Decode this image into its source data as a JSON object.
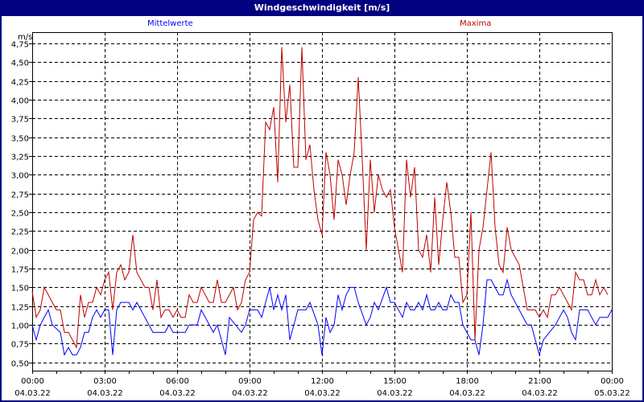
{
  "window": {
    "title": "Windgeschwindigkeit [m/s]"
  },
  "colors": {
    "titlebar": "#000080",
    "mean": "#0000ff",
    "max": "#c00000",
    "grid": "#000000"
  },
  "chart_data": {
    "type": "line",
    "title": "Windgeschwindigkeit [m/s]",
    "ylabel": "m/s",
    "xlabel": "",
    "ylim": [
      0.39,
      4.9
    ],
    "xlim": [
      "04.03.22 00:00",
      "05.03.22 00:00"
    ],
    "grid": true,
    "legend_placement": "top",
    "y_ticks": [
      "0,50",
      "0,75",
      "1,00",
      "1,25",
      "1,50",
      "1,75",
      "2,00",
      "2,25",
      "2,50",
      "2,75",
      "3,00",
      "3,25",
      "3,50",
      "3,75",
      "4,00",
      "4,25",
      "4,50",
      "4,75"
    ],
    "y_tick_values": [
      0.5,
      0.75,
      1.0,
      1.25,
      1.5,
      1.75,
      2.0,
      2.25,
      2.5,
      2.75,
      3.0,
      3.25,
      3.5,
      3.75,
      4.0,
      4.25,
      4.5,
      4.75
    ],
    "x_ticks": [
      {
        "time": "00:00",
        "date": "04.03.22"
      },
      {
        "time": "03:00",
        "date": "04.03.22"
      },
      {
        "time": "06:00",
        "date": "04.03.22"
      },
      {
        "time": "09:00",
        "date": "04.03.22"
      },
      {
        "time": "12:00",
        "date": "04.03.22"
      },
      {
        "time": "15:00",
        "date": "04.03.22"
      },
      {
        "time": "18:00",
        "date": "04.03.22"
      },
      {
        "time": "21:00",
        "date": "04.03.22"
      },
      {
        "time": "00:00",
        "date": "05.03.22"
      }
    ],
    "series": [
      {
        "name": "Mittelwerte",
        "color": "#0000ff",
        "points": [
          [
            "00:00",
            1.0
          ],
          [
            "00:10",
            0.8
          ],
          [
            "00:20",
            1.0
          ],
          [
            "00:40",
            1.2
          ],
          [
            "00:50",
            1.0
          ],
          [
            "01:10",
            0.9
          ],
          [
            "01:20",
            0.6
          ],
          [
            "01:30",
            0.7
          ],
          [
            "01:40",
            0.6
          ],
          [
            "01:50",
            0.6
          ],
          [
            "02:00",
            0.7
          ],
          [
            "02:10",
            0.9
          ],
          [
            "02:20",
            0.9
          ],
          [
            "02:30",
            1.1
          ],
          [
            "02:40",
            1.2
          ],
          [
            "02:50",
            1.1
          ],
          [
            "03:00",
            1.2
          ],
          [
            "03:10",
            1.2
          ],
          [
            "03:20",
            0.6
          ],
          [
            "03:30",
            1.2
          ],
          [
            "03:40",
            1.3
          ],
          [
            "04:00",
            1.3
          ],
          [
            "04:10",
            1.2
          ],
          [
            "04:20",
            1.3
          ],
          [
            "05:00",
            0.9
          ],
          [
            "05:30",
            0.9
          ],
          [
            "05:40",
            1.0
          ],
          [
            "05:50",
            0.9
          ],
          [
            "06:20",
            0.9
          ],
          [
            "06:30",
            1.0
          ],
          [
            "06:50",
            1.0
          ],
          [
            "07:00",
            1.2
          ],
          [
            "07:30",
            0.9
          ],
          [
            "07:40",
            1.0
          ],
          [
            "08:00",
            0.6
          ],
          [
            "08:10",
            1.1
          ],
          [
            "08:40",
            0.9
          ],
          [
            "08:50",
            1.0
          ],
          [
            "09:00",
            1.2
          ],
          [
            "09:20",
            1.2
          ],
          [
            "09:30",
            1.1
          ],
          [
            "09:40",
            1.3
          ],
          [
            "09:50",
            1.5
          ],
          [
            "10:00",
            1.2
          ],
          [
            "10:10",
            1.4
          ],
          [
            "10:20",
            1.2
          ],
          [
            "10:30",
            1.4
          ],
          [
            "10:40",
            0.8
          ],
          [
            "11:00",
            1.2
          ],
          [
            "11:20",
            1.2
          ],
          [
            "11:30",
            1.3
          ],
          [
            "11:50",
            1.0
          ],
          [
            "12:00",
            0.6
          ],
          [
            "12:10",
            1.1
          ],
          [
            "12:20",
            0.9
          ],
          [
            "12:30",
            1.0
          ],
          [
            "12:40",
            1.4
          ],
          [
            "12:50",
            1.2
          ],
          [
            "13:00",
            1.4
          ],
          [
            "13:10",
            1.5
          ],
          [
            "13:20",
            1.5
          ],
          [
            "13:30",
            1.3
          ],
          [
            "13:50",
            1.0
          ],
          [
            "14:00",
            1.1
          ],
          [
            "14:10",
            1.3
          ],
          [
            "14:20",
            1.2
          ],
          [
            "14:40",
            1.5
          ],
          [
            "14:50",
            1.3
          ],
          [
            "15:00",
            1.3
          ],
          [
            "15:20",
            1.1
          ],
          [
            "15:30",
            1.3
          ],
          [
            "15:40",
            1.2
          ],
          [
            "15:50",
            1.2
          ],
          [
            "16:00",
            1.3
          ],
          [
            "16:10",
            1.2
          ],
          [
            "16:20",
            1.4
          ],
          [
            "16:30",
            1.2
          ],
          [
            "16:40",
            1.2
          ],
          [
            "16:50",
            1.3
          ],
          [
            "17:00",
            1.2
          ],
          [
            "17:10",
            1.2
          ],
          [
            "17:20",
            1.4
          ],
          [
            "17:30",
            1.3
          ],
          [
            "17:40",
            1.3
          ],
          [
            "17:50",
            1.0
          ],
          [
            "18:10",
            0.8
          ],
          [
            "18:20",
            0.8
          ],
          [
            "18:30",
            0.6
          ],
          [
            "18:40",
            1.0
          ],
          [
            "18:50",
            1.6
          ],
          [
            "19:00",
            1.6
          ],
          [
            "19:20",
            1.4
          ],
          [
            "19:30",
            1.4
          ],
          [
            "19:40",
            1.6
          ],
          [
            "19:50",
            1.4
          ],
          [
            "20:10",
            1.2
          ],
          [
            "20:30",
            1.0
          ],
          [
            "20:40",
            1.0
          ],
          [
            "21:00",
            0.6
          ],
          [
            "21:10",
            0.8
          ],
          [
            "21:40",
            1.0
          ],
          [
            "22:00",
            1.2
          ],
          [
            "22:10",
            1.1
          ],
          [
            "22:20",
            0.9
          ],
          [
            "22:30",
            0.8
          ],
          [
            "22:40",
            1.2
          ],
          [
            "23:00",
            1.2
          ],
          [
            "23:20",
            1.0
          ],
          [
            "23:30",
            1.1
          ],
          [
            "23:50",
            1.1
          ],
          [
            "24:00",
            1.2
          ]
        ]
      },
      {
        "name": "Maxima",
        "color": "#c00000",
        "points": [
          [
            "00:00",
            1.45
          ],
          [
            "00:10",
            1.1
          ],
          [
            "00:20",
            1.2
          ],
          [
            "00:30",
            1.5
          ],
          [
            "00:50",
            1.3
          ],
          [
            "01:00",
            1.2
          ],
          [
            "01:10",
            1.2
          ],
          [
            "01:20",
            0.9
          ],
          [
            "01:30",
            0.9
          ],
          [
            "01:50",
            0.7
          ],
          [
            "02:00",
            1.4
          ],
          [
            "02:10",
            1.1
          ],
          [
            "02:20",
            1.3
          ],
          [
            "02:30",
            1.3
          ],
          [
            "02:40",
            1.5
          ],
          [
            "02:50",
            1.4
          ],
          [
            "03:00",
            1.6
          ],
          [
            "03:10",
            1.7
          ],
          [
            "03:20",
            1.2
          ],
          [
            "03:30",
            1.7
          ],
          [
            "03:40",
            1.8
          ],
          [
            "03:50",
            1.6
          ],
          [
            "04:00",
            1.7
          ],
          [
            "04:10",
            2.2
          ],
          [
            "04:20",
            1.7
          ],
          [
            "04:30",
            1.6
          ],
          [
            "04:40",
            1.5
          ],
          [
            "04:50",
            1.5
          ],
          [
            "05:00",
            1.2
          ],
          [
            "05:10",
            1.6
          ],
          [
            "05:20",
            1.1
          ],
          [
            "05:30",
            1.2
          ],
          [
            "05:40",
            1.2
          ],
          [
            "05:50",
            1.1
          ],
          [
            "06:00",
            1.2
          ],
          [
            "06:10",
            1.1
          ],
          [
            "06:20",
            1.1
          ],
          [
            "06:30",
            1.4
          ],
          [
            "06:40",
            1.3
          ],
          [
            "06:50",
            1.3
          ],
          [
            "07:00",
            1.5
          ],
          [
            "07:20",
            1.3
          ],
          [
            "07:30",
            1.3
          ],
          [
            "07:40",
            1.6
          ],
          [
            "07:50",
            1.3
          ],
          [
            "08:00",
            1.3
          ],
          [
            "08:20",
            1.5
          ],
          [
            "08:30",
            1.2
          ],
          [
            "08:40",
            1.3
          ],
          [
            "08:50",
            1.6
          ],
          [
            "09:00",
            1.7
          ],
          [
            "09:10",
            2.4
          ],
          [
            "09:20",
            2.5
          ],
          [
            "09:30",
            2.45
          ],
          [
            "09:40",
            3.7
          ],
          [
            "09:50",
            3.6
          ],
          [
            "10:00",
            3.9
          ],
          [
            "10:10",
            2.9
          ],
          [
            "10:20",
            4.7
          ],
          [
            "10:30",
            3.7
          ],
          [
            "10:40",
            4.2
          ],
          [
            "10:50",
            3.1
          ],
          [
            "11:00",
            3.1
          ],
          [
            "11:10",
            4.7
          ],
          [
            "11:20",
            3.2
          ],
          [
            "11:30",
            3.4
          ],
          [
            "11:40",
            2.8
          ],
          [
            "11:50",
            2.4
          ],
          [
            "12:00",
            2.2
          ],
          [
            "12:10",
            3.3
          ],
          [
            "12:20",
            3.0
          ],
          [
            "12:30",
            2.4
          ],
          [
            "12:40",
            3.2
          ],
          [
            "12:50",
            3.0
          ],
          [
            "13:00",
            2.6
          ],
          [
            "13:10",
            3.0
          ],
          [
            "13:20",
            3.3
          ],
          [
            "13:30",
            4.3
          ],
          [
            "13:40",
            3.2
          ],
          [
            "13:50",
            2.0
          ],
          [
            "14:00",
            3.2
          ],
          [
            "14:10",
            2.5
          ],
          [
            "14:20",
            3.0
          ],
          [
            "14:30",
            2.8
          ],
          [
            "14:40",
            2.7
          ],
          [
            "14:50",
            2.8
          ],
          [
            "15:00",
            2.3
          ],
          [
            "15:10",
            2.0
          ],
          [
            "15:20",
            1.7
          ],
          [
            "15:30",
            3.2
          ],
          [
            "15:40",
            2.7
          ],
          [
            "15:50",
            3.1
          ],
          [
            "16:00",
            2.0
          ],
          [
            "16:10",
            1.9
          ],
          [
            "16:20",
            2.2
          ],
          [
            "16:30",
            1.7
          ],
          [
            "16:40",
            2.7
          ],
          [
            "16:50",
            1.8
          ],
          [
            "17:00",
            2.4
          ],
          [
            "17:10",
            2.9
          ],
          [
            "17:20",
            2.5
          ],
          [
            "17:30",
            1.9
          ],
          [
            "17:40",
            1.9
          ],
          [
            "17:50",
            1.3
          ],
          [
            "18:00",
            1.4
          ],
          [
            "18:10",
            2.5
          ],
          [
            "18:20",
            0.8
          ],
          [
            "18:30",
            2.0
          ],
          [
            "18:40",
            2.3
          ],
          [
            "18:50",
            2.8
          ],
          [
            "19:00",
            3.3
          ],
          [
            "19:10",
            2.3
          ],
          [
            "19:20",
            1.8
          ],
          [
            "19:30",
            1.7
          ],
          [
            "19:40",
            2.3
          ],
          [
            "19:50",
            2.0
          ],
          [
            "20:00",
            1.9
          ],
          [
            "20:10",
            1.8
          ],
          [
            "20:20",
            1.5
          ],
          [
            "20:30",
            1.2
          ],
          [
            "20:50",
            1.2
          ],
          [
            "21:00",
            1.1
          ],
          [
            "21:10",
            1.2
          ],
          [
            "21:20",
            1.1
          ],
          [
            "21:30",
            1.4
          ],
          [
            "21:40",
            1.4
          ],
          [
            "21:50",
            1.5
          ],
          [
            "22:10",
            1.3
          ],
          [
            "22:20",
            1.2
          ],
          [
            "22:30",
            1.7
          ],
          [
            "22:40",
            1.6
          ],
          [
            "22:50",
            1.6
          ],
          [
            "23:00",
            1.4
          ],
          [
            "23:10",
            1.4
          ],
          [
            "23:20",
            1.6
          ],
          [
            "23:30",
            1.4
          ],
          [
            "23:40",
            1.5
          ],
          [
            "23:50",
            1.4
          ]
        ]
      }
    ]
  }
}
